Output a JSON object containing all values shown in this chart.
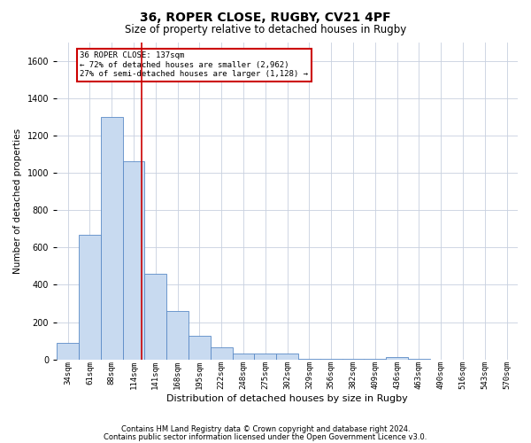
{
  "title1": "36, ROPER CLOSE, RUGBY, CV21 4PF",
  "title2": "Size of property relative to detached houses in Rugby",
  "xlabel": "Distribution of detached houses by size in Rugby",
  "ylabel": "Number of detached properties",
  "categories": [
    "34sqm",
    "61sqm",
    "88sqm",
    "114sqm",
    "141sqm",
    "168sqm",
    "195sqm",
    "222sqm",
    "248sqm",
    "275sqm",
    "302sqm",
    "329sqm",
    "356sqm",
    "382sqm",
    "409sqm",
    "436sqm",
    "463sqm",
    "490sqm",
    "516sqm",
    "543sqm",
    "570sqm"
  ],
  "values": [
    90,
    670,
    1300,
    1060,
    460,
    260,
    125,
    65,
    30,
    30,
    30,
    5,
    5,
    5,
    5,
    15,
    5,
    0,
    0,
    0,
    0
  ],
  "bar_color": "#c8daf0",
  "bar_edge_color": "#5a8ac6",
  "vline_color": "#cc0000",
  "annotation_text": "36 ROPER CLOSE: 137sqm\n← 72% of detached houses are smaller (2,962)\n27% of semi-detached houses are larger (1,128) →",
  "annotation_box_color": "#ffffff",
  "annotation_box_edge_color": "#cc0000",
  "ylim": [
    0,
    1700
  ],
  "yticks": [
    0,
    200,
    400,
    600,
    800,
    1000,
    1200,
    1400,
    1600
  ],
  "grid_color": "#c8d0df",
  "footer1": "Contains HM Land Registry data © Crown copyright and database right 2024.",
  "footer2": "Contains public sector information licensed under the Open Government Licence v3.0.",
  "background_color": "#ffffff",
  "bar_width": 1.0,
  "title1_fontsize": 10,
  "title2_fontsize": 8.5,
  "ylabel_fontsize": 7.5,
  "xlabel_fontsize": 8,
  "footer_fontsize": 6,
  "tick_fontsize": 6.5,
  "ytick_fontsize": 7
}
